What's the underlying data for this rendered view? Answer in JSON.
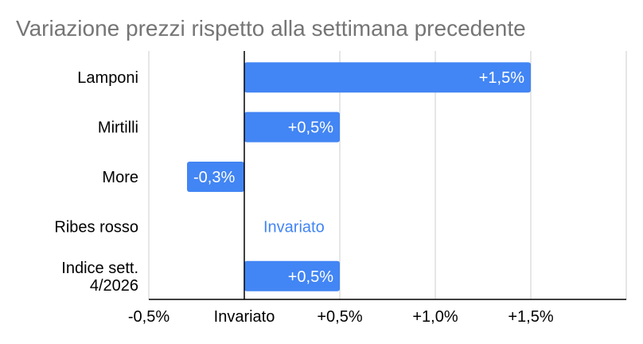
{
  "chart_data": {
    "type": "bar",
    "orientation": "horizontal",
    "title": "Variazione prezzi rispetto alla settimana precedente",
    "xlabel": "",
    "ylabel": "",
    "xlim": [
      -0.5,
      2.0
    ],
    "grid": true,
    "bar_color": "#4285f4",
    "zero_label_color": "#4285f4",
    "categories": [
      [
        "Lamponi"
      ],
      [
        "Mirtilli"
      ],
      [
        "More"
      ],
      [
        "Ribes rosso"
      ],
      [
        "Indice sett.",
        "4/2026"
      ]
    ],
    "values": [
      1.5,
      0.5,
      -0.3,
      0.0,
      0.5
    ],
    "data_labels": [
      "+1,5%",
      "+0,5%",
      "-0,3%",
      "Invariato",
      "+0,5%"
    ],
    "x_ticks": [
      {
        "value": -0.5,
        "label": "-0,5%"
      },
      {
        "value": 0.0,
        "label": "Invariato"
      },
      {
        "value": 0.5,
        "label": "+0,5%"
      },
      {
        "value": 1.0,
        "label": "+1,0%"
      },
      {
        "value": 1.5,
        "label": "+1,5%"
      }
    ]
  }
}
